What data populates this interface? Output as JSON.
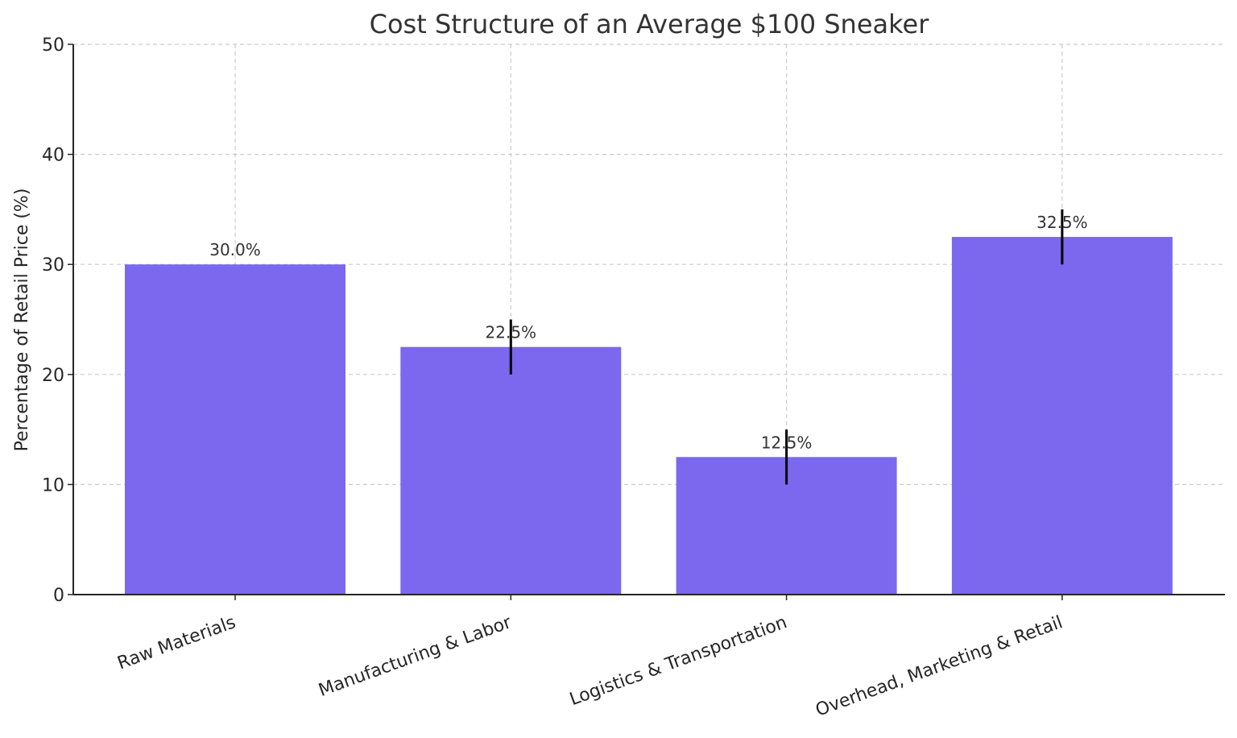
{
  "chart_data": {
    "type": "bar",
    "title": "Cost Structure of an Average $100 Sneaker",
    "xlabel": "",
    "ylabel": "Percentage of Retail Price (%)",
    "categories": [
      "Raw Materials",
      "Manufacturing & Labor",
      "Logistics & Transportation",
      "Overhead, Marketing & Retail"
    ],
    "values": [
      30.0,
      22.5,
      12.5,
      32.5
    ],
    "error_ranges": [
      null,
      [
        20,
        25
      ],
      [
        10,
        15
      ],
      [
        30,
        35
      ]
    ],
    "data_labels": [
      "30.0%",
      "22.5%",
      "12.5%",
      "32.5%"
    ],
    "ylim": [
      0,
      50
    ],
    "yticks": [
      0,
      10,
      20,
      30,
      40,
      50
    ],
    "grid": true,
    "bar_color": "#7b68ee",
    "error_color": "#000000"
  }
}
